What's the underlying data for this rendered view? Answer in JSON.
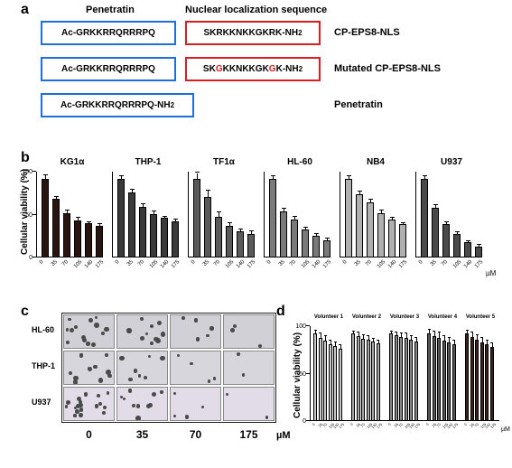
{
  "panelA": {
    "label": "a",
    "headers": {
      "left": "Penetratin",
      "right": "Nuclear localization sequence"
    },
    "rows": [
      {
        "left": "Ac-GRKKRRQRRRPQ",
        "right": "SKRKKNKKGKRK-NH",
        "rightRedIdx": [],
        "name": "CP-EPS8-NLS"
      },
      {
        "left": "Ac-GRKKRRQRRRPQ",
        "right": "SKGKKNKKGKGK-NH",
        "rightRedIdx": [
          2,
          10
        ],
        "name": "Mutated CP-EPS8-NLS"
      },
      {
        "left": "Ac-GRKKRRQRRRPQ-NH",
        "right": null,
        "rightRedIdx": [],
        "name": "Penetratin"
      }
    ],
    "sub2": "2"
  },
  "panelB": {
    "label": "b",
    "yAxisLabel": "Cellular viability (%)",
    "unit": "µM",
    "yTicks": [
      0,
      50,
      100
    ],
    "xCats": [
      "0",
      "35",
      "70",
      "105",
      "140",
      "175"
    ],
    "charts": [
      {
        "title": "KG1α",
        "color": "#2a1410",
        "values": [
          100,
          74,
          56,
          47,
          43,
          40
        ],
        "err": [
          4,
          3,
          3,
          3,
          2,
          2
        ]
      },
      {
        "title": "THP-1",
        "color": "#3a3a3a",
        "values": [
          100,
          82,
          64,
          55,
          50,
          46
        ],
        "err": [
          3,
          4,
          3,
          3,
          2,
          2
        ]
      },
      {
        "title": "TF1α",
        "color": "#5a5a5a",
        "values": [
          100,
          77,
          52,
          40,
          33,
          30
        ],
        "err": [
          7,
          8,
          5,
          4,
          3,
          3
        ]
      },
      {
        "title": "HL-60",
        "color": "#7a7a7a",
        "values": [
          100,
          58,
          48,
          35,
          28,
          22
        ],
        "err": [
          3,
          4,
          3,
          3,
          2,
          2
        ]
      },
      {
        "title": "NB4",
        "color": "#b0b0b0",
        "values": [
          100,
          80,
          70,
          56,
          48,
          42
        ],
        "err": [
          3,
          3,
          3,
          3,
          2,
          2
        ]
      },
      {
        "title": "U937",
        "color": "#4a4a4a",
        "values": [
          100,
          63,
          42,
          30,
          19,
          14
        ],
        "err": [
          3,
          3,
          3,
          2,
          2,
          2
        ]
      }
    ]
  },
  "panelC": {
    "label": "c",
    "rows": [
      "HL-60",
      "THP-1",
      "U937"
    ],
    "cols": [
      "0",
      "35",
      "70",
      "175"
    ],
    "unit": "µM",
    "bgColors": {
      "HL-60": "#d0d0d6",
      "THP-1": "#d6d6dc",
      "U937": "#e2dce8"
    },
    "density": [
      [
        14,
        10,
        5,
        3
      ],
      [
        12,
        7,
        4,
        2
      ],
      [
        18,
        10,
        4,
        2
      ]
    ]
  },
  "panelD": {
    "label": "d",
    "yAxisLabel": "Cellular viability (%)",
    "unit": "µM",
    "yTicks": [
      0,
      50,
      100
    ],
    "xCats": [
      "0",
      "35",
      "70",
      "105",
      "140",
      "175"
    ],
    "groups": [
      {
        "title": "Volunteer 1",
        "color": "#c8c8c8",
        "values": [
          100,
          95,
          92,
          88,
          86,
          83
        ],
        "err": [
          4,
          5,
          5,
          4,
          4,
          4
        ]
      },
      {
        "title": "Volunteer 2",
        "color": "#a6a6a6",
        "values": [
          100,
          97,
          94,
          93,
          91,
          89
        ],
        "err": [
          3,
          4,
          4,
          4,
          3,
          3
        ]
      },
      {
        "title": "Volunteer 3",
        "color": "#888888",
        "values": [
          100,
          98,
          96,
          95,
          93,
          91
        ],
        "err": [
          3,
          3,
          4,
          5,
          4,
          4
        ]
      },
      {
        "title": "Volunteer 4",
        "color": "#5a5a5a",
        "values": [
          100,
          97,
          95,
          92,
          90,
          88
        ],
        "err": [
          5,
          6,
          6,
          5,
          5,
          4
        ]
      },
      {
        "title": "Volunteer 5",
        "color": "#3a201a",
        "values": [
          100,
          96,
          93,
          90,
          88,
          85
        ],
        "err": [
          4,
          5,
          5,
          5,
          4,
          4
        ]
      }
    ]
  }
}
